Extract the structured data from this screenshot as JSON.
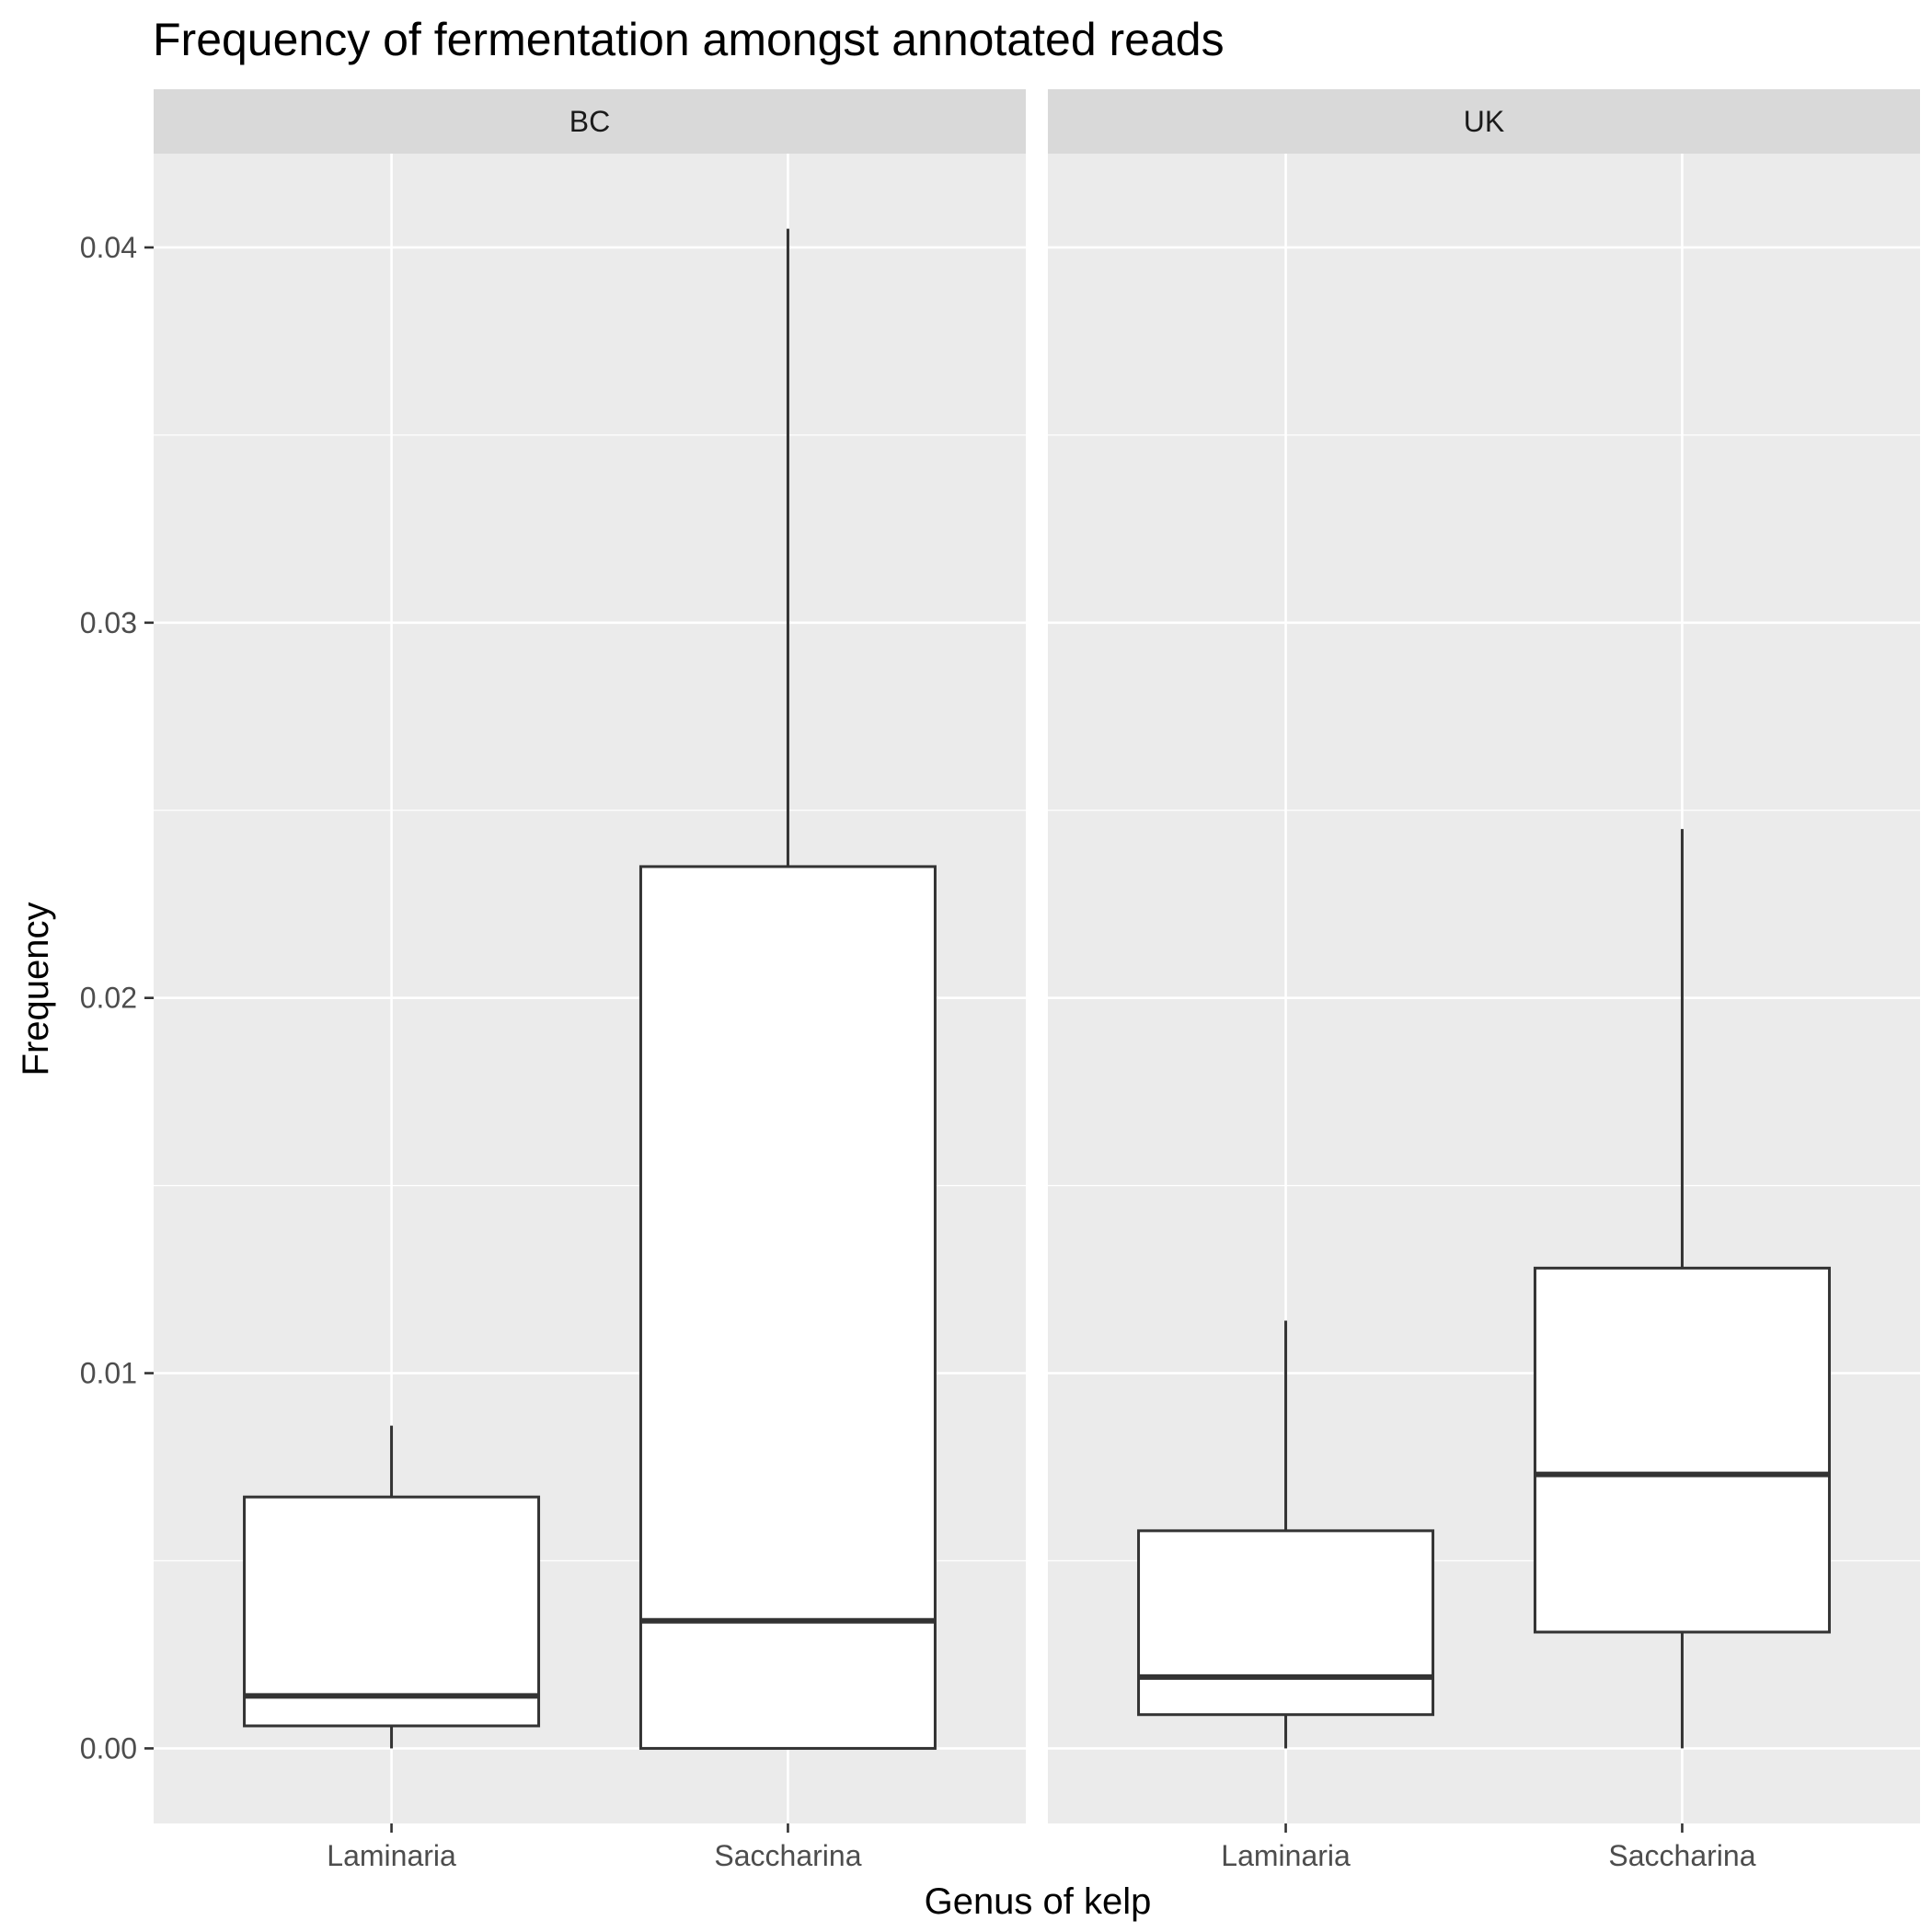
{
  "chart_data": {
    "type": "boxplot",
    "title": "Frequency of fermentation amongst annotated reads",
    "xlabel": "Genus of kelp",
    "ylabel": "Frequency",
    "categories": [
      "Laminaria",
      "Saccharina"
    ],
    "y_ticks": [
      "0.00",
      "0.01",
      "0.02",
      "0.03",
      "0.04"
    ],
    "y_tick_values": [
      0,
      0.01,
      0.02,
      0.03,
      0.04
    ],
    "ylim": [
      -0.002,
      0.0425
    ],
    "grid": true,
    "facets": [
      {
        "label": "BC",
        "boxes": [
          {
            "category": "Laminaria",
            "whisker_low": 0.0,
            "q1": 0.0006,
            "median": 0.0014,
            "q3": 0.0067,
            "whisker_high": 0.0086
          },
          {
            "category": "Saccharina",
            "whisker_low": 0.0,
            "q1": 0.0,
            "median": 0.0034,
            "q3": 0.0235,
            "whisker_high": 0.0405
          }
        ]
      },
      {
        "label": "UK",
        "boxes": [
          {
            "category": "Laminaria",
            "whisker_low": 0.0,
            "q1": 0.0009,
            "median": 0.0019,
            "q3": 0.0058,
            "whisker_high": 0.0114
          },
          {
            "category": "Saccharina",
            "whisker_low": 0.0,
            "q1": 0.0031,
            "median": 0.0073,
            "q3": 0.0128,
            "whisker_high": 0.0245
          }
        ]
      }
    ],
    "colors": {
      "panel_background": "#ebebeb",
      "strip_background": "#d9d9d9",
      "grid": "#ffffff",
      "box_fill": "#ffffff",
      "box_line": "#333333"
    }
  }
}
